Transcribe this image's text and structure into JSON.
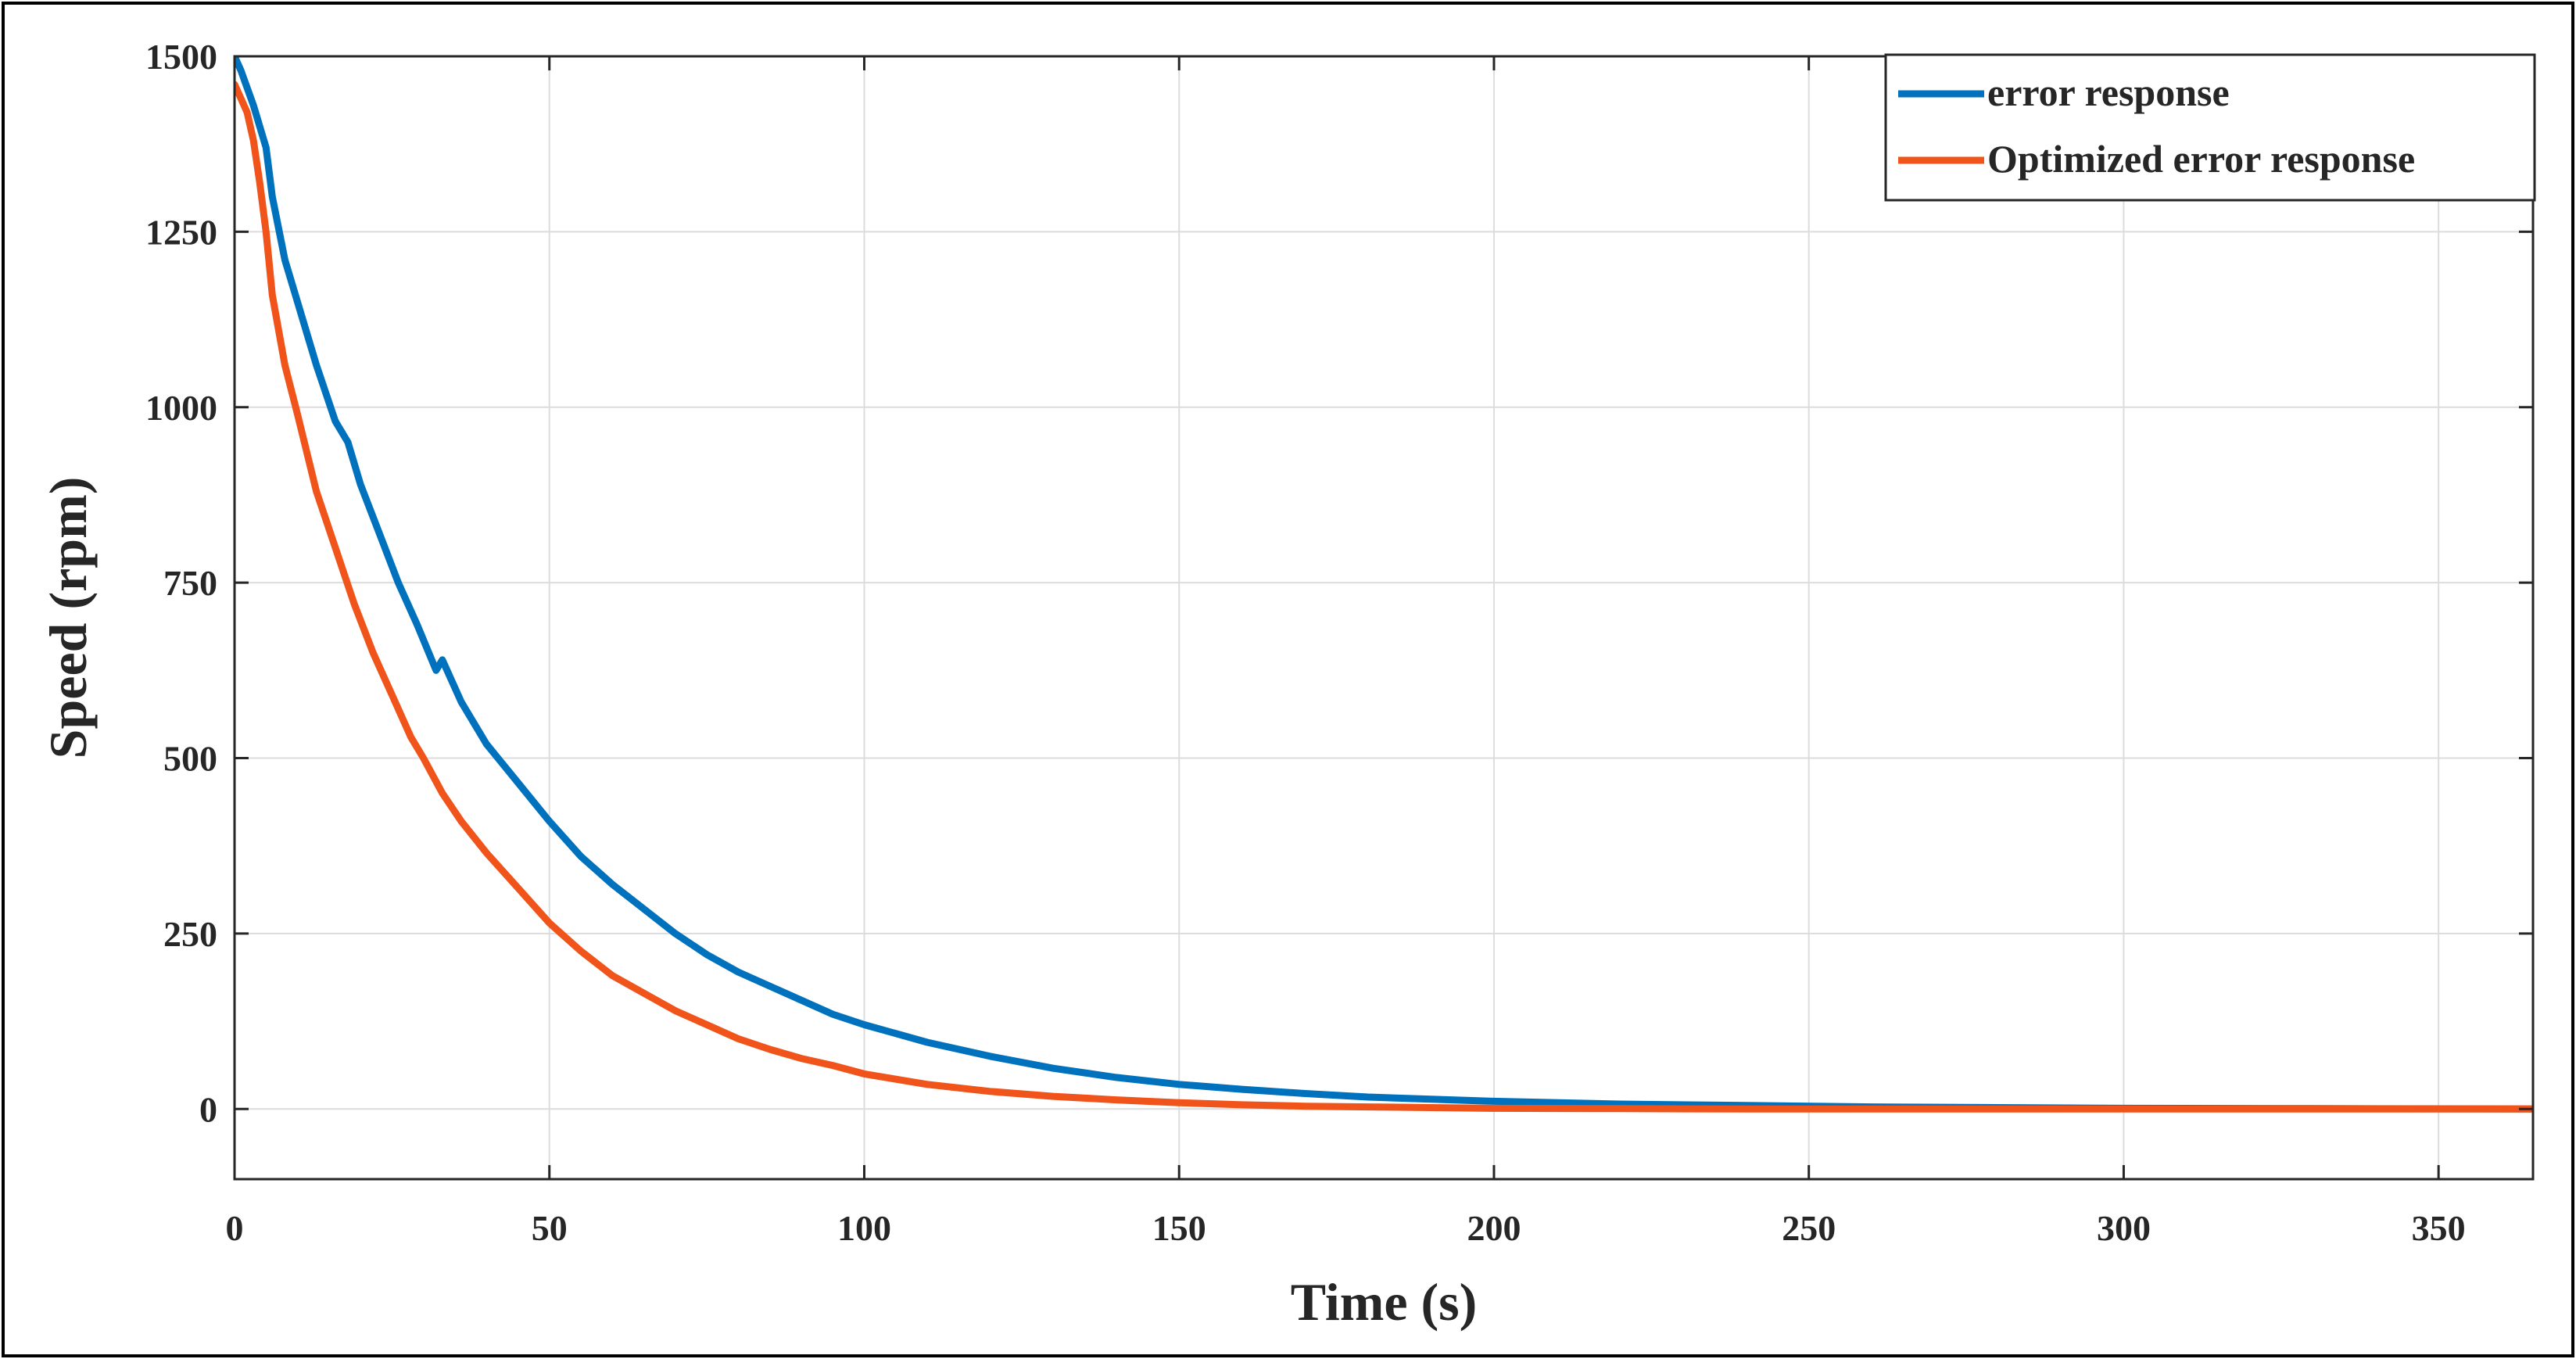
{
  "chart_data": {
    "type": "line",
    "title": "",
    "xlabel": "Time (s)",
    "ylabel": "Speed (rpm)",
    "xlim": [
      0,
      365
    ],
    "ylim": [
      -100,
      1500
    ],
    "xticks": [
      0,
      50,
      100,
      150,
      200,
      250,
      300,
      350
    ],
    "yticks": [
      0,
      250,
      500,
      750,
      1000,
      1250,
      1500
    ],
    "grid": true,
    "legend_location": "top-right",
    "series": [
      {
        "name": "error response",
        "color": "#0072BD",
        "x": [
          0,
          1,
          3,
          5,
          6,
          8,
          10,
          13,
          16,
          18,
          20,
          23,
          26,
          29,
          32,
          33,
          36,
          40,
          45,
          50,
          55,
          60,
          65,
          70,
          75,
          80,
          85,
          90,
          95,
          100,
          110,
          120,
          130,
          140,
          150,
          160,
          170,
          180,
          190,
          200,
          220,
          240,
          260,
          280,
          300,
          330,
          365
        ],
        "y": [
          1500,
          1480,
          1430,
          1370,
          1300,
          1210,
          1150,
          1060,
          980,
          950,
          890,
          820,
          750,
          690,
          625,
          640,
          580,
          520,
          465,
          410,
          360,
          320,
          285,
          250,
          220,
          195,
          175,
          155,
          135,
          120,
          95,
          75,
          58,
          45,
          35,
          28,
          22,
          17,
          14,
          11,
          7,
          5,
          3,
          2,
          1,
          0.5,
          0
        ]
      },
      {
        "name": "Optimized error response",
        "color": "#F1541B",
        "x": [
          0,
          1,
          2,
          3,
          4,
          5,
          6,
          8,
          10,
          13,
          16,
          19,
          22,
          25,
          28,
          30,
          33,
          36,
          40,
          45,
          50,
          55,
          60,
          65,
          70,
          75,
          80,
          85,
          90,
          95,
          100,
          110,
          120,
          130,
          140,
          150,
          160,
          170,
          180,
          190,
          200,
          220,
          240,
          260,
          300,
          365
        ],
        "y": [
          1460,
          1440,
          1420,
          1380,
          1320,
          1250,
          1160,
          1060,
          990,
          880,
          800,
          720,
          650,
          590,
          530,
          500,
          450,
          410,
          365,
          315,
          265,
          225,
          190,
          165,
          140,
          120,
          100,
          85,
          72,
          62,
          50,
          35,
          25,
          18,
          13,
          9,
          6,
          4,
          3,
          2,
          1,
          0.5,
          0,
          0,
          0,
          0
        ]
      }
    ]
  }
}
